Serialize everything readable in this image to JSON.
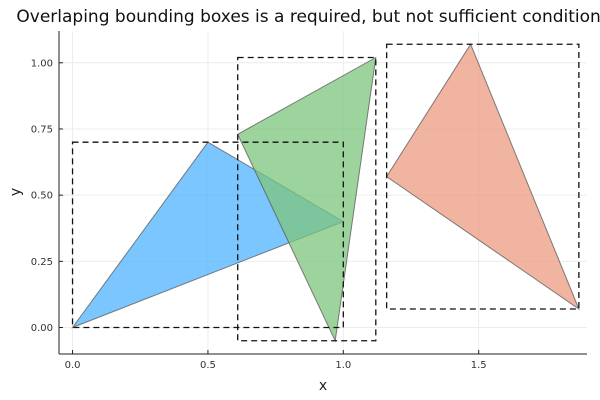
{
  "chart_data": {
    "type": "area",
    "title": "Overlaping bounding boxes is a required, but not sufficient condition for",
    "xlabel": "x",
    "ylabel": "y",
    "xlim": [
      -0.05,
      1.9
    ],
    "ylim": [
      -0.1,
      1.12
    ],
    "xticks": [
      0.0,
      0.5,
      1.0,
      1.5
    ],
    "xtick_labels": [
      "0.0",
      "0.5",
      "1.0",
      "1.5"
    ],
    "yticks": [
      0.0,
      0.25,
      0.5,
      0.75,
      1.0
    ],
    "ytick_labels": [
      "0.00",
      "0.25",
      "0.50",
      "0.75",
      "1.00"
    ],
    "grid": true,
    "legend": "none",
    "series": [
      {
        "color": "#4fb3ff",
        "opacity": 0.75,
        "points": [
          [
            0.0,
            0.0
          ],
          [
            0.5,
            0.7
          ],
          [
            1.0,
            0.4
          ]
        ]
      },
      {
        "color": "#7cc47c",
        "opacity": 0.75,
        "points": [
          [
            0.61,
            0.73
          ],
          [
            1.12,
            1.02
          ],
          [
            0.97,
            -0.05
          ]
        ]
      },
      {
        "color": "#eb9b80",
        "opacity": 0.75,
        "points": [
          [
            1.16,
            0.57
          ],
          [
            1.47,
            1.07
          ],
          [
            1.87,
            0.07
          ]
        ]
      }
    ],
    "bounding_boxes": [
      {
        "xmin": 0.0,
        "xmax": 1.0,
        "ymin": 0.0,
        "ymax": 0.7
      },
      {
        "xmin": 0.61,
        "xmax": 1.12,
        "ymin": -0.05,
        "ymax": 1.02
      },
      {
        "xmin": 1.16,
        "xmax": 1.87,
        "ymin": 0.07,
        "ymax": 1.07
      }
    ]
  }
}
